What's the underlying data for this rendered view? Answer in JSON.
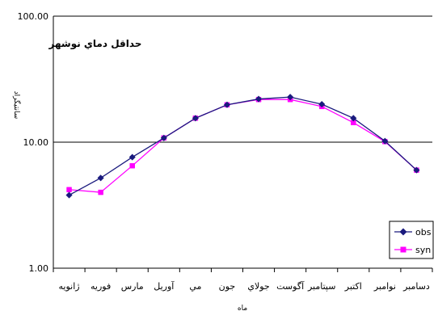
{
  "chart_data": {
    "type": "line",
    "title": "حداقل دماي نوشهر",
    "xlabel": "ماه",
    "ylabel": "سانتيگراد",
    "y_scale": "log",
    "ylim": [
      1,
      100
    ],
    "y_ticks": [
      "100.00",
      "10.00",
      "1.00"
    ],
    "grid": "major horizontal at 10.00",
    "legend_position": "bottom-right",
    "categories": [
      "ژانويه",
      "فوريه",
      "مارس",
      "آوريل",
      "مي",
      "جون",
      "جولاي",
      "آگوست",
      "سپتامبر",
      "اكتبر",
      "نوامبر",
      "دسامبر"
    ],
    "series": [
      {
        "name": "obs",
        "color": "#1a1a7e",
        "marker": "diamond",
        "values": [
          3.8,
          5.2,
          7.6,
          10.8,
          15.5,
          19.8,
          22.0,
          22.8,
          20.0,
          15.5,
          10.2,
          6.0
        ]
      },
      {
        "name": "syn",
        "color": "#ff00ff",
        "marker": "square",
        "values": [
          4.2,
          4.0,
          6.5,
          10.8,
          15.5,
          19.8,
          21.8,
          21.8,
          19.2,
          14.3,
          10.1,
          6.0
        ]
      }
    ]
  }
}
